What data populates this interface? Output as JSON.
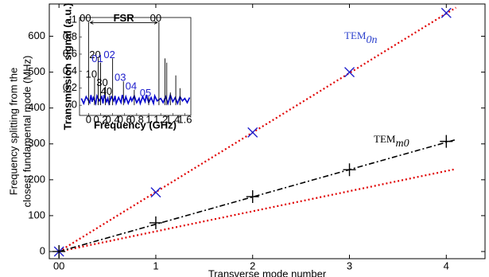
{
  "chart_data": [
    {
      "type": "scatter",
      "x_label": "Transverse mode number",
      "y_label": [
        "Frequency splitting from the",
        "closest fundamental mode (MHz)"
      ],
      "xlim": [
        -0.1,
        4.4
      ],
      "ylim": [
        -20,
        690
      ],
      "xticks": [
        {
          "value": 0,
          "label": "00"
        },
        1,
        2,
        3,
        4
      ],
      "yticks": [
        0,
        100,
        200,
        300,
        400,
        500,
        600
      ],
      "grid": false,
      "series": [
        {
          "color": "#e00000",
          "line": "dotted",
          "x": [
            0,
            4.1
          ],
          "values": [
            0,
            680
          ]
        },
        {
          "color": "#e00000",
          "line": "dotted",
          "x": [
            0,
            4.1
          ],
          "values": [
            0,
            230
          ]
        },
        {
          "color": "#000000",
          "line": "dashdot",
          "x": [
            0,
            4.1
          ],
          "values": [
            0,
            312
          ]
        },
        {
          "color": "#2020cc",
          "marker": "x",
          "x": [
            0,
            1,
            2,
            3,
            4
          ],
          "values": [
            0,
            165,
            332,
            500,
            665
          ]
        },
        {
          "color": "#000000",
          "marker": "+",
          "x": [
            0,
            1,
            2,
            3,
            4
          ],
          "values": [
            0,
            80,
            153,
            228,
            307
          ]
        }
      ],
      "annotations": [
        {
          "base": "TEM",
          "sub": "0n",
          "color": "#2a3fcc"
        },
        {
          "base": "TEM",
          "sub": "m0",
          "color": "#000000"
        }
      ]
    },
    {
      "type": "spectrum",
      "x_label": "Frequency (GHz)",
      "y_label": "Transmission signal (a.u.)",
      "xlim": [
        -0.15,
        1.7
      ],
      "ylim": [
        -0.12,
        1.03
      ],
      "xticks": [
        0,
        0.2,
        0.4,
        0.6,
        0.8,
        1,
        1.2,
        1.4,
        1.6
      ],
      "yticks": [
        0,
        0.2,
        0.4,
        0.6,
        0.8,
        1
      ],
      "noise": {
        "color": "#0000cc",
        "x": [
          -0.12,
          -0.08,
          -0.04,
          0.02,
          0.04,
          0.06,
          0.08,
          0.12,
          0.14,
          0.18,
          0.22,
          0.24,
          0.26,
          0.3,
          0.32,
          0.34,
          0.38,
          0.42,
          0.44,
          0.46,
          0.5,
          0.54,
          0.56,
          0.6,
          0.62,
          0.66,
          0.7,
          0.72,
          0.76,
          0.8,
          0.84,
          0.86,
          0.9,
          0.94,
          0.96,
          1.0,
          1.04,
          1.08,
          1.1,
          1.14,
          1.2,
          1.24,
          1.28,
          1.32,
          1.36,
          1.4,
          1.44,
          1.48,
          1.52,
          1.56,
          1.6,
          1.64,
          1.68
        ],
        "values": [
          0.08,
          0.02,
          0.1,
          0.03,
          0.12,
          0.04,
          0.09,
          0.02,
          0.11,
          0.05,
          0.1,
          0.02,
          0.12,
          0.04,
          0.08,
          0.02,
          0.1,
          0.05,
          0.11,
          0.02,
          0.09,
          0.03,
          0.12,
          0.04,
          0.1,
          0.02,
          0.09,
          0.05,
          0.11,
          0.03,
          0.08,
          0.02,
          0.1,
          0.04,
          0.12,
          0.03,
          0.09,
          0.02,
          0.11,
          0.05,
          0.08,
          0.03,
          0.1,
          0.02,
          0.12,
          0.04,
          0.09,
          0.02,
          0.1,
          0.05,
          0.08,
          0.03,
          0.09
        ]
      },
      "peaks": [
        {
          "x": 0.0,
          "height": 0.98,
          "label": "00",
          "label_color": "#000000"
        },
        {
          "x": 0.1,
          "height": 0.32,
          "label": "10",
          "label_color": "#000000"
        },
        {
          "x": 0.16,
          "height": 0.55,
          "label": "20",
          "label_color": "#000000"
        },
        {
          "x": 0.2,
          "height": 0.5,
          "label": "01",
          "label_color": "#2020cc"
        },
        {
          "x": 0.28,
          "height": 0.22,
          "label": "30",
          "label_color": "#000000"
        },
        {
          "x": 0.35,
          "height": 0.12,
          "label": "40",
          "label_color": "#000000"
        },
        {
          "x": 0.4,
          "height": 0.55,
          "label": "02",
          "label_color": "#2020cc"
        },
        {
          "x": 0.58,
          "height": 0.28,
          "label": "03",
          "label_color": "#2020cc"
        },
        {
          "x": 0.76,
          "height": 0.18,
          "label": "04",
          "label_color": "#2020cc"
        },
        {
          "x": 1.0,
          "height": 0.1,
          "label": "05",
          "label_color": "#2020cc"
        },
        {
          "x": 1.17,
          "height": 0.98,
          "label": "00",
          "label_color": "#000000"
        },
        {
          "x": 1.27,
          "height": 0.55,
          "label": null,
          "label_color": "#000000"
        },
        {
          "x": 1.3,
          "height": 0.5,
          "label": null,
          "label_color": "#000000"
        },
        {
          "x": 1.36,
          "height": 0.15,
          "label": null,
          "label_color": "#000000"
        },
        {
          "x": 1.45,
          "height": 0.35,
          "label": null,
          "label_color": "#000000"
        },
        {
          "x": 1.52,
          "height": 0.2,
          "label": null,
          "label_color": "#000000"
        }
      ],
      "fsr": {
        "label": "FSR",
        "from": 0,
        "to": 1.17
      }
    }
  ]
}
